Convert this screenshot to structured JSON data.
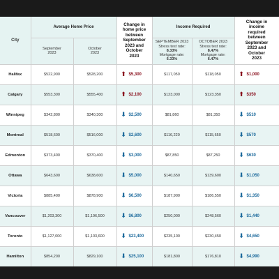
{
  "header": {
    "city": "City",
    "avg_price": "Average Home Price",
    "change_price": [
      "Change in",
      "home price",
      "between",
      "September",
      "2023 and",
      "October",
      "2023"
    ],
    "income_required": "Income Required",
    "change_income": [
      "Change in",
      "income",
      "required",
      "between",
      "September",
      "2023 and",
      "October",
      "2023"
    ],
    "sep_price": [
      "September",
      "2023"
    ],
    "oct_price": [
      "October",
      "2023"
    ],
    "sep_income": {
      "title": "SEPTEMBER 2023",
      "stress": "Stress test rate:",
      "stress_val": "8.33%",
      "mort": "Mortgage rate:",
      "mort_val": "6.33%"
    },
    "oct_income": {
      "title": "OCTOBER 2023",
      "stress": "Stress test rate:",
      "stress_val": "8.47%",
      "mort": "Mortgage rate:",
      "mort_val": "6.47%"
    }
  },
  "arrow_up_color": "#8b1320",
  "arrow_down_color": "#1d6a9c",
  "rows": [
    {
      "city": "Halifax",
      "sep_price": "$522,900",
      "oct_price": "$528,200",
      "price_change": "$5,300",
      "price_dir": "up",
      "sep_income": "$117,050",
      "oct_income": "$118,050",
      "income_change": "$1,000",
      "income_dir": "up"
    },
    {
      "city": "Calgary",
      "sep_price": "$553,300",
      "oct_price": "$555,400",
      "price_change": "$2,100",
      "price_dir": "up",
      "sep_income": "$123,000",
      "oct_income": "$123,350",
      "income_change": "$350",
      "income_dir": "up"
    },
    {
      "city": "Winnipeg",
      "sep_price": "$342,800",
      "oct_price": "$340,300",
      "price_change": "$2,500",
      "price_dir": "down",
      "sep_income": "$81,860",
      "oct_income": "$81,350",
      "income_change": "$510",
      "income_dir": "down"
    },
    {
      "city": "Montreal",
      "sep_price": "$518,600",
      "oct_price": "$516,000",
      "price_change": "$2,600",
      "price_dir": "down",
      "sep_income": "$116,220",
      "oct_income": "$115,650",
      "income_change": "$570",
      "income_dir": "down"
    },
    {
      "city": "Edmonton",
      "sep_price": "$373,400",
      "oct_price": "$370,400",
      "price_change": "$3,000",
      "price_dir": "down",
      "sep_income": "$87,850",
      "oct_income": "$87,250",
      "income_change": "$630",
      "income_dir": "down"
    },
    {
      "city": "Ottawa",
      "sep_price": "$643,600",
      "oct_price": "$638,600",
      "price_change": "$5,000",
      "price_dir": "down",
      "sep_income": "$140,650",
      "oct_income": "$139,600",
      "income_change": "$1,050",
      "income_dir": "down"
    },
    {
      "city": "Victoria",
      "sep_price": "$885,400",
      "oct_price": "$878,900",
      "price_change": "$6,500",
      "price_dir": "down",
      "sep_income": "$187,900",
      "oct_income": "$186,550",
      "income_change": "$1,350",
      "income_dir": "down"
    },
    {
      "city": "Vancouver",
      "sep_price": "$1,203,300",
      "oct_price": "$1,196,500",
      "price_change": "$6,800",
      "price_dir": "down",
      "sep_income": "$250,000",
      "oct_income": "$248,560",
      "income_change": "$1,440",
      "income_dir": "down"
    },
    {
      "city": "Toronto",
      "sep_price": "$1,127,000",
      "oct_price": "$1,103,600",
      "price_change": "$23,400",
      "price_dir": "down",
      "sep_income": "$235,100",
      "oct_income": "$230,450",
      "income_change": "$4,650",
      "income_dir": "down"
    },
    {
      "city": "Hamilton",
      "sep_price": "$854,200",
      "oct_price": "$829,100",
      "price_change": "$25,100",
      "price_dir": "down",
      "sep_income": "$181,800",
      "oct_income": "$176,810",
      "income_change": "$4,990",
      "income_dir": "down"
    }
  ]
}
